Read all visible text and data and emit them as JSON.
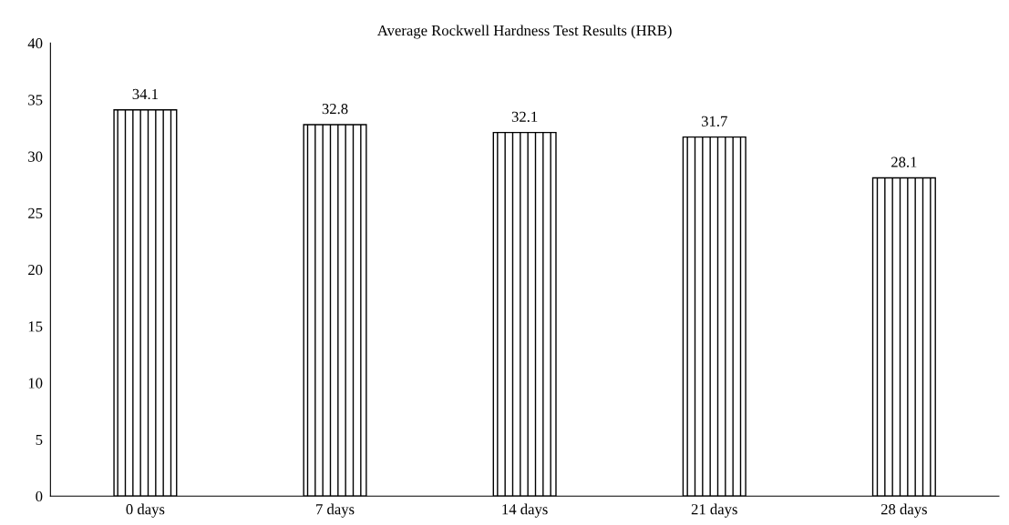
{
  "chart_data": {
    "type": "bar",
    "title": "Average Rockwell Hardness Test Results (HRB)",
    "categories": [
      "0 days",
      "7 days",
      "14 days",
      "21 days",
      "28 days"
    ],
    "values": [
      34.1,
      32.8,
      32.1,
      31.7,
      28.1
    ],
    "color": "#000000",
    "ylim": [
      0,
      40
    ],
    "yticks": [
      0,
      5,
      10,
      15,
      20,
      25,
      30,
      35,
      40
    ],
    "grid": false,
    "legend": false,
    "data_labels": true
  }
}
